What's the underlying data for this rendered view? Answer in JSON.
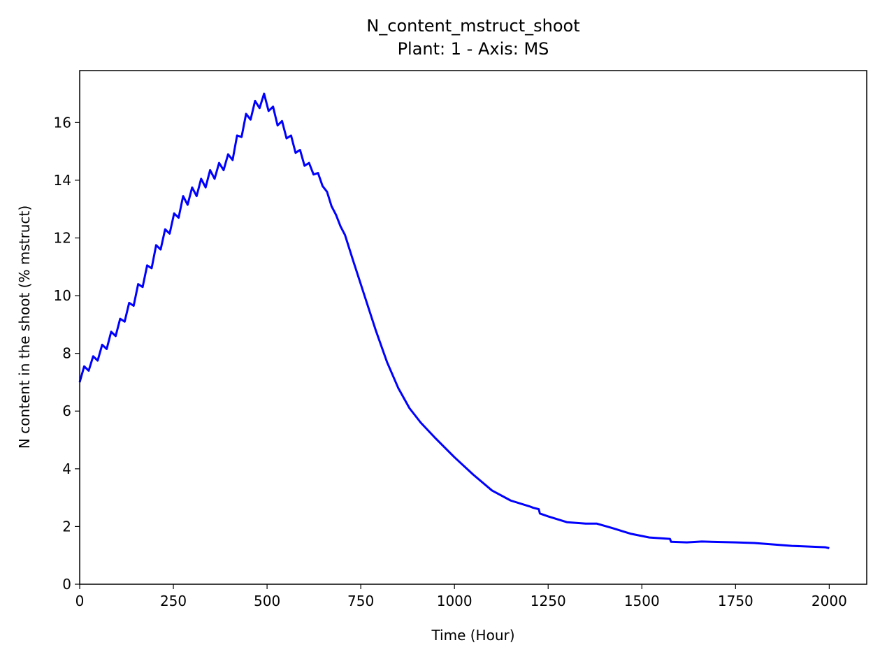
{
  "chart_data": {
    "type": "line",
    "title": "N_content_mstruct_shoot",
    "subtitle": "Plant: 1 - Axis: MS",
    "x_label": "Time (Hour)",
    "y_label": "N content in the shoot (% mstruct)",
    "x": [
      0,
      12,
      24,
      36,
      48,
      60,
      72,
      84,
      96,
      108,
      120,
      132,
      144,
      156,
      168,
      180,
      192,
      204,
      216,
      228,
      240,
      252,
      264,
      276,
      288,
      300,
      312,
      324,
      336,
      348,
      360,
      372,
      384,
      396,
      408,
      420,
      432,
      444,
      456,
      468,
      480,
      492,
      504,
      516,
      528,
      540,
      552,
      564,
      576,
      588,
      600,
      612,
      624,
      636,
      648,
      660,
      672,
      684,
      696,
      708,
      730,
      760,
      790,
      820,
      850,
      880,
      910,
      950,
      1000,
      1050,
      1100,
      1150,
      1200,
      1210,
      1225,
      1228,
      1250,
      1300,
      1350,
      1380,
      1420,
      1470,
      1520,
      1575,
      1578,
      1620,
      1660,
      1750,
      1800,
      1900,
      1990,
      2000
    ],
    "series": [
      {
        "color": "#0000ff",
        "values": [
          7.0,
          7.55,
          7.4,
          7.9,
          7.75,
          8.3,
          8.15,
          8.75,
          8.6,
          9.2,
          9.1,
          9.75,
          9.65,
          10.4,
          10.3,
          11.05,
          10.95,
          11.75,
          11.6,
          12.3,
          12.15,
          12.85,
          12.7,
          13.45,
          13.15,
          13.75,
          13.45,
          14.05,
          13.75,
          14.35,
          14.05,
          14.6,
          14.35,
          14.9,
          14.7,
          15.55,
          15.5,
          16.3,
          16.1,
          16.75,
          16.5,
          17.0,
          16.4,
          16.55,
          15.9,
          16.05,
          15.45,
          15.55,
          14.95,
          15.05,
          14.5,
          14.6,
          14.2,
          14.25,
          13.8,
          13.6,
          13.1,
          12.8,
          12.4,
          12.1,
          11.2,
          10.0,
          8.8,
          7.7,
          6.8,
          6.1,
          5.6,
          5.05,
          4.4,
          3.8,
          3.25,
          2.9,
          2.7,
          2.65,
          2.6,
          2.45,
          2.35,
          2.15,
          2.1,
          2.1,
          1.95,
          1.75,
          1.62,
          1.57,
          1.47,
          1.45,
          1.48,
          1.45,
          1.43,
          1.33,
          1.28,
          1.25
        ]
      }
    ],
    "xlim": [
      0,
      2100
    ],
    "ylim": [
      0,
      17.8
    ],
    "xticks": [
      0,
      250,
      500,
      750,
      1000,
      1250,
      1500,
      1750,
      2000
    ],
    "yticks": [
      0,
      2,
      4,
      6,
      8,
      10,
      12,
      14,
      16
    ],
    "grid": false
  }
}
